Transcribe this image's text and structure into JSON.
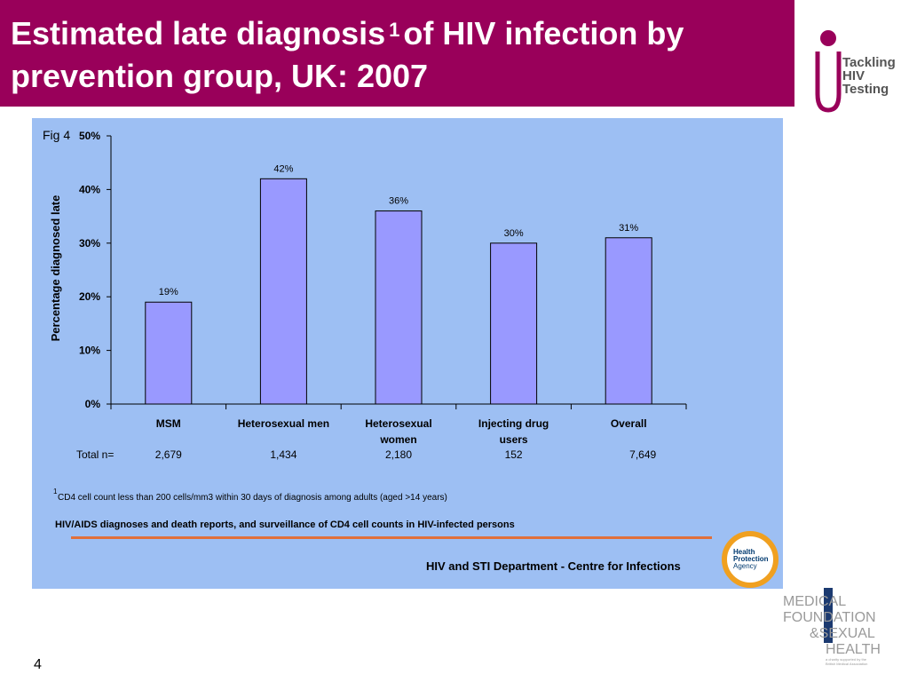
{
  "slide": {
    "title_part1": "Estimated late diagnosis",
    "title_sup": "1",
    "title_part2": "of HIV infection by prevention group, UK: 2007",
    "page_number": "4",
    "fig_label": "Fig 4"
  },
  "logo_tackling": {
    "line1": "Tackling",
    "line2": "HIV",
    "line3": "Testing",
    "color": "#99005a"
  },
  "logo_medfound": {
    "line1": "MEDICAL",
    "line2": "FOUNDATION",
    "line3": "&SEXUAL",
    "line4": "HEALTH",
    "tagline1": "a charity supported by the",
    "tagline2": "British Medical Association"
  },
  "chart_data": {
    "type": "bar",
    "categories": [
      "MSM",
      "Heterosexual men",
      "Heterosexual women",
      "Injecting drug users",
      "Overall"
    ],
    "category_lines": [
      [
        "MSM"
      ],
      [
        "Heterosexual men"
      ],
      [
        "Heterosexual",
        "women"
      ],
      [
        "Injecting drug",
        "users"
      ],
      [
        "Overall"
      ]
    ],
    "values": [
      19,
      42,
      36,
      30,
      31
    ],
    "value_labels": [
      "19%",
      "42%",
      "36%",
      "30%",
      "31%"
    ],
    "ylabel": "Percentage diagnosed late",
    "ylim": [
      0,
      50
    ],
    "yticks": [
      "0%",
      "10%",
      "20%",
      "30%",
      "40%",
      "50%"
    ],
    "total_label": "Total n=",
    "totals": [
      "2,679",
      "1,434",
      "2,180",
      "152",
      "7,649"
    ],
    "footnote_sup": "1",
    "footnote": "CD4 cell count  less than 200 cells/mm3 within 30 days of diagnosis among adults (aged >14 years)",
    "source": "HIV/AIDS diagnoses and  death reports, and surveillance of CD4 cell counts in HIV-infected persons",
    "department": "HIV and STI Department  - Centre for Infections",
    "agency_logo": [
      "Health",
      "Protection",
      "Agency"
    ],
    "bar_color": "#9999ff",
    "panel_color": "#9dbff3"
  }
}
